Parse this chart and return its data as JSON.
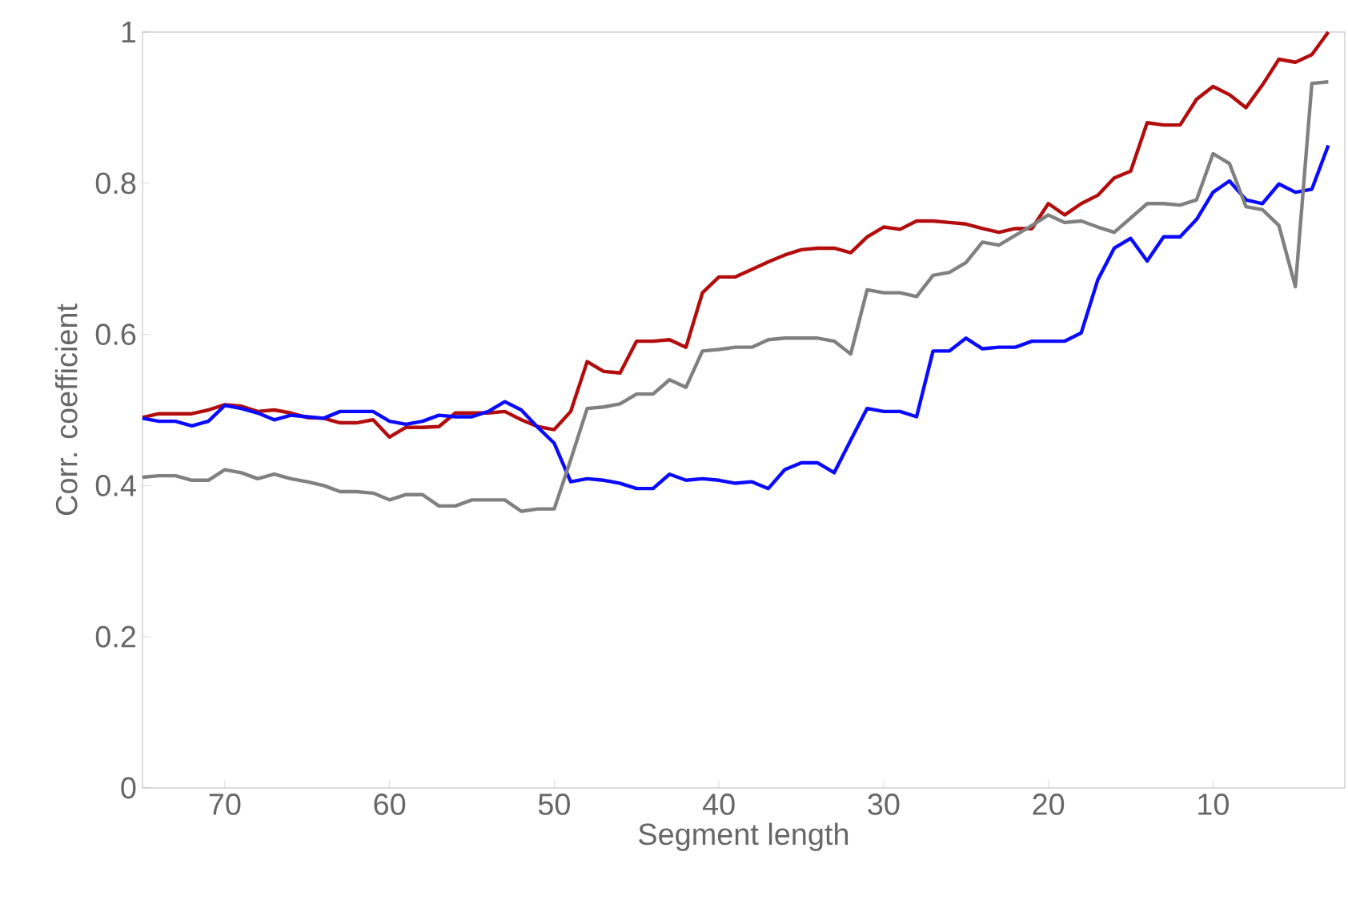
{
  "chart_data": {
    "type": "line",
    "xlabel": "Segment length",
    "ylabel": "Corr. coefficient",
    "x": [
      75,
      74,
      73,
      72,
      71,
      70,
      69,
      68,
      67,
      66,
      65,
      64,
      63,
      62,
      61,
      60,
      59,
      58,
      57,
      56,
      55,
      54,
      53,
      52,
      51,
      50,
      49,
      48,
      47,
      46,
      45,
      44,
      43,
      42,
      41,
      40,
      39,
      38,
      37,
      36,
      35,
      34,
      33,
      32,
      31,
      30,
      29,
      28,
      27,
      26,
      25,
      24,
      23,
      22,
      21,
      20,
      19,
      18,
      17,
      16,
      15,
      14,
      13,
      12,
      11,
      10,
      9,
      8,
      7,
      6,
      5,
      4,
      3
    ],
    "xlim": [
      75,
      2
    ],
    "xticks": [
      70,
      60,
      50,
      40,
      30,
      20,
      10
    ],
    "ylim": [
      0,
      1
    ],
    "yticks": [
      0,
      0.2,
      0.4,
      0.6,
      0.8,
      1
    ],
    "grid": false,
    "marker": "none",
    "line_style": "solid",
    "series": [
      {
        "color": "#b30c0c",
        "values": [
          0.49,
          0.495,
          0.495,
          0.495,
          0.5,
          0.507,
          0.505,
          0.498,
          0.5,
          0.496,
          0.49,
          0.489,
          0.483,
          0.483,
          0.487,
          0.464,
          0.477,
          0.477,
          0.478,
          0.496,
          0.496,
          0.496,
          0.498,
          0.487,
          0.478,
          0.474,
          0.498,
          0.564,
          0.551,
          0.549,
          0.591,
          0.591,
          0.593,
          0.583,
          0.655,
          0.676,
          0.676,
          0.686,
          0.696,
          0.705,
          0.712,
          0.714,
          0.714,
          0.708,
          0.729,
          0.742,
          0.739,
          0.75,
          0.75,
          0.748,
          0.746,
          0.74,
          0.735,
          0.74,
          0.74,
          0.773,
          0.758,
          0.773,
          0.784,
          0.807,
          0.816,
          0.88,
          0.877,
          0.877,
          0.911,
          0.928,
          0.917,
          0.9,
          0.93,
          0.964,
          0.96,
          0.97,
          1.0
        ]
      },
      {
        "color": "#0a0aff",
        "values": [
          0.489,
          0.485,
          0.485,
          0.479,
          0.485,
          0.506,
          0.502,
          0.496,
          0.487,
          0.493,
          0.491,
          0.489,
          0.498,
          0.498,
          0.498,
          0.485,
          0.481,
          0.485,
          0.493,
          0.491,
          0.491,
          0.498,
          0.511,
          0.5,
          0.477,
          0.456,
          0.405,
          0.409,
          0.407,
          0.403,
          0.396,
          0.396,
          0.415,
          0.407,
          0.409,
          0.407,
          0.403,
          0.405,
          0.396,
          0.421,
          0.43,
          0.43,
          0.417,
          0.46,
          0.502,
          0.498,
          0.498,
          0.491,
          0.578,
          0.578,
          0.595,
          0.581,
          0.583,
          0.583,
          0.591,
          0.591,
          0.591,
          0.602,
          0.672,
          0.714,
          0.727,
          0.697,
          0.729,
          0.729,
          0.752,
          0.788,
          0.803,
          0.778,
          0.773,
          0.799,
          0.788,
          0.792,
          0.85
        ]
      },
      {
        "color": "#808080",
        "values": [
          0.411,
          0.413,
          0.413,
          0.407,
          0.407,
          0.421,
          0.417,
          0.409,
          0.415,
          0.409,
          0.405,
          0.4,
          0.392,
          0.392,
          0.39,
          0.381,
          0.388,
          0.388,
          0.373,
          0.373,
          0.381,
          0.381,
          0.381,
          0.366,
          0.369,
          0.369,
          0.434,
          0.502,
          0.504,
          0.508,
          0.521,
          0.521,
          0.54,
          0.53,
          0.578,
          0.58,
          0.583,
          0.583,
          0.593,
          0.595,
          0.595,
          0.595,
          0.591,
          0.574,
          0.659,
          0.655,
          0.655,
          0.65,
          0.678,
          0.682,
          0.695,
          0.722,
          0.718,
          0.731,
          0.744,
          0.758,
          0.748,
          0.75,
          0.742,
          0.735,
          0.754,
          0.773,
          0.773,
          0.771,
          0.778,
          0.839,
          0.826,
          0.769,
          0.765,
          0.744,
          0.663,
          0.932,
          0.934
        ]
      }
    ]
  }
}
